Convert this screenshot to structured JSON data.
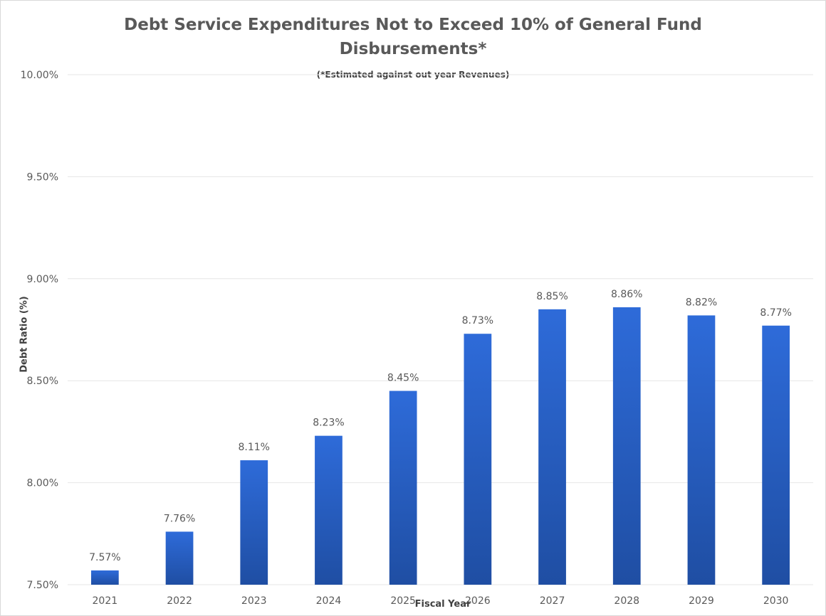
{
  "chart_data": {
    "type": "bar",
    "title": "Debt Service Expenditures Not to Exceed 10% of General Fund Disbursements*",
    "title_lines": [
      "Debt Service Expenditures Not to Exceed 10% of General Fund",
      "Disbursements*"
    ],
    "subtitle": "(*Estimated against out year Revenues)",
    "xlabel": "Fiscal Year",
    "ylabel": "Debt Ratio (%)",
    "categories": [
      "2021",
      "2022",
      "2023",
      "2024",
      "2025",
      "2026",
      "2027",
      "2028",
      "2029",
      "2030"
    ],
    "values": [
      7.57,
      7.76,
      8.11,
      8.23,
      8.45,
      8.73,
      8.85,
      8.86,
      8.82,
      8.77
    ],
    "data_labels": [
      "7.57%",
      "7.76%",
      "8.11%",
      "8.23%",
      "8.45%",
      "8.73%",
      "8.85%",
      "8.86%",
      "8.82%",
      "8.77%"
    ],
    "ylim": [
      7.5,
      10.0
    ],
    "yticks": [
      7.5,
      8.0,
      8.5,
      9.0,
      9.5,
      10.0
    ],
    "ytick_labels": [
      "7.50%",
      "8.00%",
      "8.50%",
      "9.00%",
      "9.50%",
      "10.00%"
    ],
    "grid": true,
    "colors": {
      "bar_top": "#2e6bd9",
      "bar_bottom": "#1f4ea3",
      "grid": "#e6e6e6",
      "text": "#595959"
    }
  }
}
